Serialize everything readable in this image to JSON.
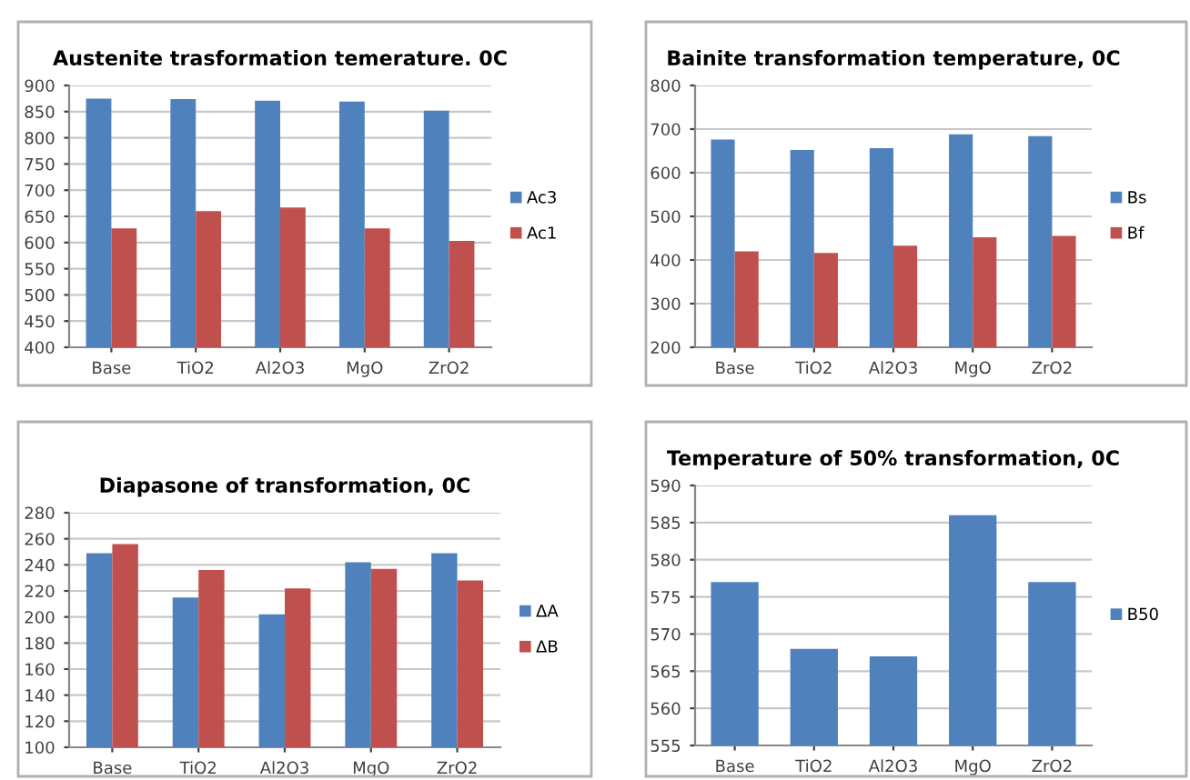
{
  "chart_data": [
    {
      "type": "bar",
      "title": "Austenite trasformation temerature. 0C",
      "categories": [
        "Base",
        "TiO2",
        "Al2O3",
        "MgO",
        "ZrO2"
      ],
      "series": [
        {
          "name": "Ac3",
          "color": "#4f81bd",
          "values": [
            875,
            874,
            871,
            869,
            852
          ]
        },
        {
          "name": "Ac1",
          "color": "#c0504d",
          "values": [
            627,
            660,
            667,
            627,
            603
          ]
        }
      ],
      "ylim": [
        400,
        900
      ],
      "yticks": [
        400,
        450,
        500,
        550,
        600,
        650,
        700,
        750,
        800,
        850,
        900
      ],
      "grid": "y",
      "legend": "right"
    },
    {
      "type": "bar",
      "title": "Bainite transformation temperature, 0C",
      "categories": [
        "Base",
        "TiO2",
        "Al2O3",
        "MgO",
        "ZrO2"
      ],
      "series": [
        {
          "name": "Bs",
          "color": "#4f81bd",
          "values": [
            676,
            652,
            656,
            688,
            684
          ]
        },
        {
          "name": "Bf",
          "color": "#c0504d",
          "values": [
            420,
            416,
            433,
            452,
            455
          ]
        }
      ],
      "ylim": [
        200,
        800
      ],
      "yticks": [
        200,
        300,
        400,
        500,
        600,
        700,
        800
      ],
      "grid": "y",
      "legend": "right"
    },
    {
      "type": "bar",
      "title": "Diapasone of transformation, 0C",
      "categories": [
        "Base",
        "TiO2",
        "Al2O3",
        "MgO",
        "ZrO2"
      ],
      "series": [
        {
          "name": "ΔA",
          "color": "#4f81bd",
          "values": [
            249,
            215,
            202,
            242,
            249
          ]
        },
        {
          "name": "ΔB",
          "color": "#c0504d",
          "values": [
            256,
            236,
            222,
            237,
            228
          ]
        }
      ],
      "ylim": [
        100,
        280
      ],
      "yticks": [
        100,
        120,
        140,
        160,
        180,
        200,
        220,
        240,
        260,
        280
      ],
      "grid": "y",
      "legend": "right"
    },
    {
      "type": "bar",
      "title": "Temperature of 50% transformation, 0C",
      "categories": [
        "Base",
        "TiO2",
        "Al2O3",
        "MgO",
        "ZrO2"
      ],
      "series": [
        {
          "name": "B50",
          "color": "#4f81bd",
          "values": [
            577,
            568,
            567,
            586,
            577
          ]
        }
      ],
      "ylim": [
        555,
        590
      ],
      "yticks": [
        555,
        560,
        565,
        570,
        575,
        580,
        585,
        590
      ],
      "grid": "y",
      "legend": "right"
    }
  ]
}
